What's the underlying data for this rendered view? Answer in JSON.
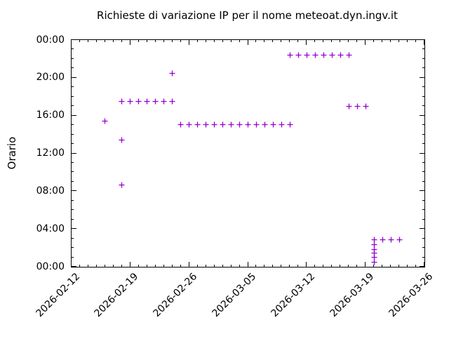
{
  "title": "Richieste di variazione IP per il nome meteoat.dyn.ingv.it",
  "colors": {
    "marker": "#9400D3",
    "axis": "#000000",
    "background": "#ffffff",
    "text": "#000000"
  },
  "chart_data": {
    "type": "scatter",
    "title": "Richieste di variazione IP per il nome meteoat.dyn.ingv.it",
    "xlabel": "",
    "ylabel": "Orario",
    "legend": "none",
    "grid": false,
    "marker": "plus",
    "marker_color": "#9400D3",
    "x_axis": {
      "type": "date",
      "range": [
        "2026-02-12",
        "2026-03-26"
      ],
      "major_ticks": [
        "2026-02-12",
        "2026-02-19",
        "2026-02-26",
        "2026-03-05",
        "2026-03-12",
        "2026-03-19",
        "2026-03-26"
      ],
      "minor_tick_interval_days": 1,
      "tick_label_rotation_deg": -45
    },
    "y_axis": {
      "type": "time-of-day",
      "range": [
        "00:00",
        "24:00"
      ],
      "major_ticks_bottom_to_top": [
        "00:00",
        "04:00",
        "08:00",
        "12:00",
        "16:00",
        "20:00",
        "00:00"
      ],
      "major_tick_interval_minutes": 240,
      "minor_tick_interval_minutes": 60
    },
    "points": [
      {
        "date": "2026-02-16",
        "time": "15:25"
      },
      {
        "date": "2026-02-18",
        "time": "08:40"
      },
      {
        "date": "2026-02-18",
        "time": "13:25"
      },
      {
        "date": "2026-02-18",
        "time": "17:30"
      },
      {
        "date": "2026-02-19",
        "time": "17:30"
      },
      {
        "date": "2026-02-20",
        "time": "17:30"
      },
      {
        "date": "2026-02-21",
        "time": "17:30"
      },
      {
        "date": "2026-02-22",
        "time": "17:30"
      },
      {
        "date": "2026-02-23",
        "time": "17:30"
      },
      {
        "date": "2026-02-24",
        "time": "17:30"
      },
      {
        "date": "2026-02-24",
        "time": "20:30"
      },
      {
        "date": "2026-02-25",
        "time": "15:05"
      },
      {
        "date": "2026-02-26",
        "time": "15:05"
      },
      {
        "date": "2026-02-27",
        "time": "15:05"
      },
      {
        "date": "2026-02-28",
        "time": "15:05"
      },
      {
        "date": "2026-03-01",
        "time": "15:05"
      },
      {
        "date": "2026-03-02",
        "time": "15:05"
      },
      {
        "date": "2026-03-03",
        "time": "15:05"
      },
      {
        "date": "2026-03-04",
        "time": "15:05"
      },
      {
        "date": "2026-03-05",
        "time": "15:05"
      },
      {
        "date": "2026-03-06",
        "time": "15:05"
      },
      {
        "date": "2026-03-07",
        "time": "15:05"
      },
      {
        "date": "2026-03-08",
        "time": "15:05"
      },
      {
        "date": "2026-03-09",
        "time": "15:05"
      },
      {
        "date": "2026-03-10",
        "time": "15:05"
      },
      {
        "date": "2026-03-10",
        "time": "22:25"
      },
      {
        "date": "2026-03-11",
        "time": "22:25"
      },
      {
        "date": "2026-03-12",
        "time": "22:25"
      },
      {
        "date": "2026-03-13",
        "time": "22:25"
      },
      {
        "date": "2026-03-14",
        "time": "22:25"
      },
      {
        "date": "2026-03-15",
        "time": "22:25"
      },
      {
        "date": "2026-03-16",
        "time": "22:25"
      },
      {
        "date": "2026-03-17",
        "time": "22:25"
      },
      {
        "date": "2026-03-17",
        "time": "17:00"
      },
      {
        "date": "2026-03-18",
        "time": "17:00"
      },
      {
        "date": "2026-03-19",
        "time": "17:00"
      },
      {
        "date": "2026-03-20",
        "time": "00:30"
      },
      {
        "date": "2026-03-20",
        "time": "01:00"
      },
      {
        "date": "2026-03-20",
        "time": "01:25"
      },
      {
        "date": "2026-03-20",
        "time": "01:50"
      },
      {
        "date": "2026-03-20",
        "time": "02:20"
      },
      {
        "date": "2026-03-20",
        "time": "02:50"
      },
      {
        "date": "2026-03-21",
        "time": "02:50"
      },
      {
        "date": "2026-03-22",
        "time": "02:50"
      },
      {
        "date": "2026-03-23",
        "time": "02:50"
      }
    ]
  }
}
